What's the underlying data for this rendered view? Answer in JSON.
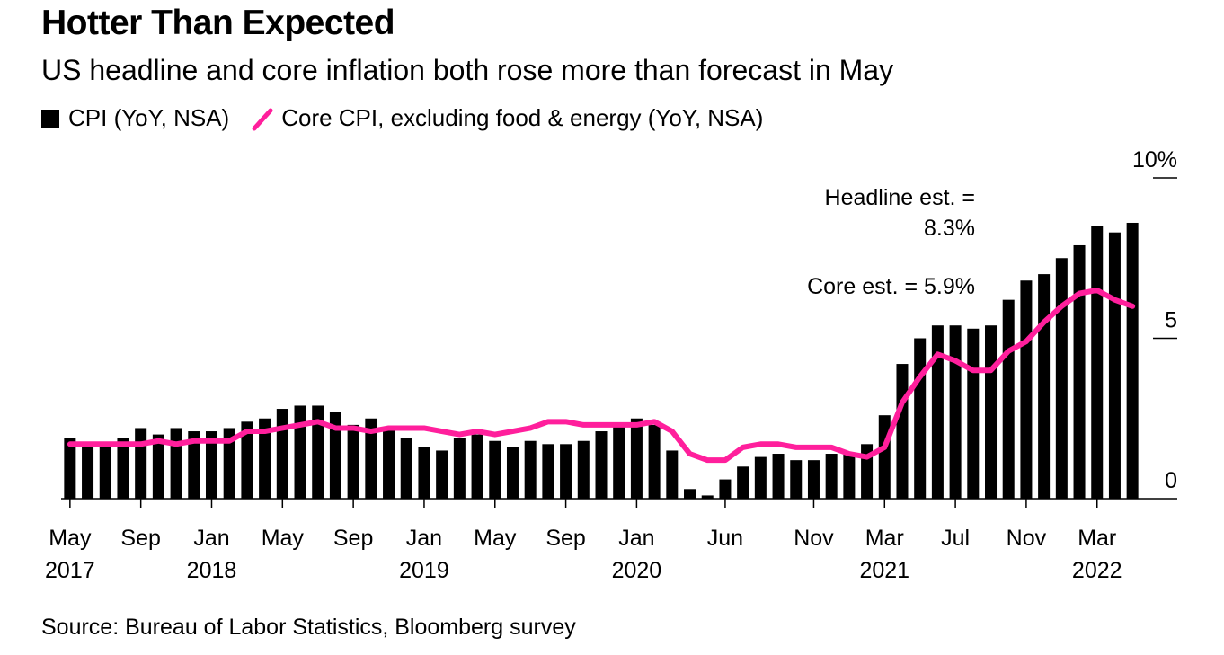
{
  "title": "Hotter Than Expected",
  "subtitle": "US headline and core inflation both rose more than forecast in May",
  "legend": {
    "cpi_label": "CPI (YoY, NSA)",
    "core_label": "Core CPI, excluding food & energy (YoY, NSA)"
  },
  "source": "Source: Bureau of Labor Statistics, Bloomberg survey",
  "colors": {
    "bar": "#000000",
    "core_line": "#ff1f9c"
  },
  "chart_data": {
    "type": "bar",
    "title": "Hotter Than Expected",
    "ylim": [
      0,
      10
    ],
    "y_ticks": [
      {
        "value": 0,
        "label": "0"
      },
      {
        "value": 5,
        "label": "5"
      },
      {
        "value": 10,
        "label": "10%"
      }
    ],
    "categories": [
      "2017-05",
      "2017-06",
      "2017-07",
      "2017-08",
      "2017-09",
      "2017-10",
      "2017-11",
      "2017-12",
      "2018-01",
      "2018-02",
      "2018-03",
      "2018-04",
      "2018-05",
      "2018-06",
      "2018-07",
      "2018-08",
      "2018-09",
      "2018-10",
      "2018-11",
      "2018-12",
      "2019-01",
      "2019-02",
      "2019-03",
      "2019-04",
      "2019-05",
      "2019-06",
      "2019-07",
      "2019-08",
      "2019-09",
      "2019-10",
      "2019-11",
      "2019-12",
      "2020-01",
      "2020-02",
      "2020-03",
      "2020-04",
      "2020-05",
      "2020-06",
      "2020-07",
      "2020-08",
      "2020-09",
      "2020-10",
      "2020-11",
      "2020-12",
      "2021-01",
      "2021-02",
      "2021-03",
      "2021-04",
      "2021-05",
      "2021-06",
      "2021-07",
      "2021-08",
      "2021-09",
      "2021-10",
      "2021-11",
      "2021-12",
      "2022-01",
      "2022-02",
      "2022-03",
      "2022-04",
      "2022-05"
    ],
    "series": [
      {
        "name": "CPI (YoY, NSA)",
        "kind": "bar",
        "values": [
          1.9,
          1.6,
          1.7,
          1.9,
          2.2,
          2.0,
          2.2,
          2.1,
          2.1,
          2.2,
          2.4,
          2.5,
          2.8,
          2.9,
          2.9,
          2.7,
          2.3,
          2.5,
          2.2,
          1.9,
          1.6,
          1.5,
          1.9,
          2.0,
          1.8,
          1.6,
          1.8,
          1.7,
          1.7,
          1.8,
          2.1,
          2.3,
          2.5,
          2.3,
          1.5,
          0.3,
          0.1,
          0.6,
          1.0,
          1.3,
          1.4,
          1.2,
          1.2,
          1.4,
          1.4,
          1.7,
          2.6,
          4.2,
          5.0,
          5.4,
          5.4,
          5.3,
          5.4,
          6.2,
          6.8,
          7.0,
          7.5,
          7.9,
          8.5,
          8.3,
          8.6
        ]
      },
      {
        "name": "Core CPI, excluding food & energy (YoY, NSA)",
        "kind": "line",
        "values": [
          1.7,
          1.7,
          1.7,
          1.7,
          1.7,
          1.8,
          1.7,
          1.8,
          1.8,
          1.8,
          2.1,
          2.1,
          2.2,
          2.3,
          2.4,
          2.2,
          2.2,
          2.1,
          2.2,
          2.2,
          2.2,
          2.1,
          2.0,
          2.1,
          2.0,
          2.1,
          2.2,
          2.4,
          2.4,
          2.3,
          2.3,
          2.3,
          2.3,
          2.4,
          2.1,
          1.4,
          1.2,
          1.2,
          1.6,
          1.7,
          1.7,
          1.6,
          1.6,
          1.6,
          1.4,
          1.3,
          1.6,
          3.0,
          3.8,
          4.5,
          4.3,
          4.0,
          4.0,
          4.6,
          4.9,
          5.5,
          6.0,
          6.4,
          6.5,
          6.2,
          6.0
        ]
      }
    ],
    "x_ticks": [
      {
        "index": 0,
        "month": "May",
        "year": "2017"
      },
      {
        "index": 4,
        "month": "Sep",
        "year": ""
      },
      {
        "index": 8,
        "month": "Jan",
        "year": "2018"
      },
      {
        "index": 12,
        "month": "May",
        "year": ""
      },
      {
        "index": 16,
        "month": "Sep",
        "year": ""
      },
      {
        "index": 20,
        "month": "Jan",
        "year": "2019"
      },
      {
        "index": 24,
        "month": "May",
        "year": ""
      },
      {
        "index": 28,
        "month": "Sep",
        "year": ""
      },
      {
        "index": 32,
        "month": "Jan",
        "year": "2020"
      },
      {
        "index": 37,
        "month": "Jun",
        "year": ""
      },
      {
        "index": 42,
        "month": "Nov",
        "year": ""
      },
      {
        "index": 46,
        "month": "Mar",
        "year": "2021"
      },
      {
        "index": 50,
        "month": "Jul",
        "year": ""
      },
      {
        "index": 54,
        "month": "Nov",
        "year": ""
      },
      {
        "index": 58,
        "month": "Mar",
        "year": "2022"
      }
    ],
    "annotations": {
      "headline_line1": "Headline est. =",
      "headline_line2": "8.3%",
      "core": "Core est. = 5.9%"
    }
  }
}
